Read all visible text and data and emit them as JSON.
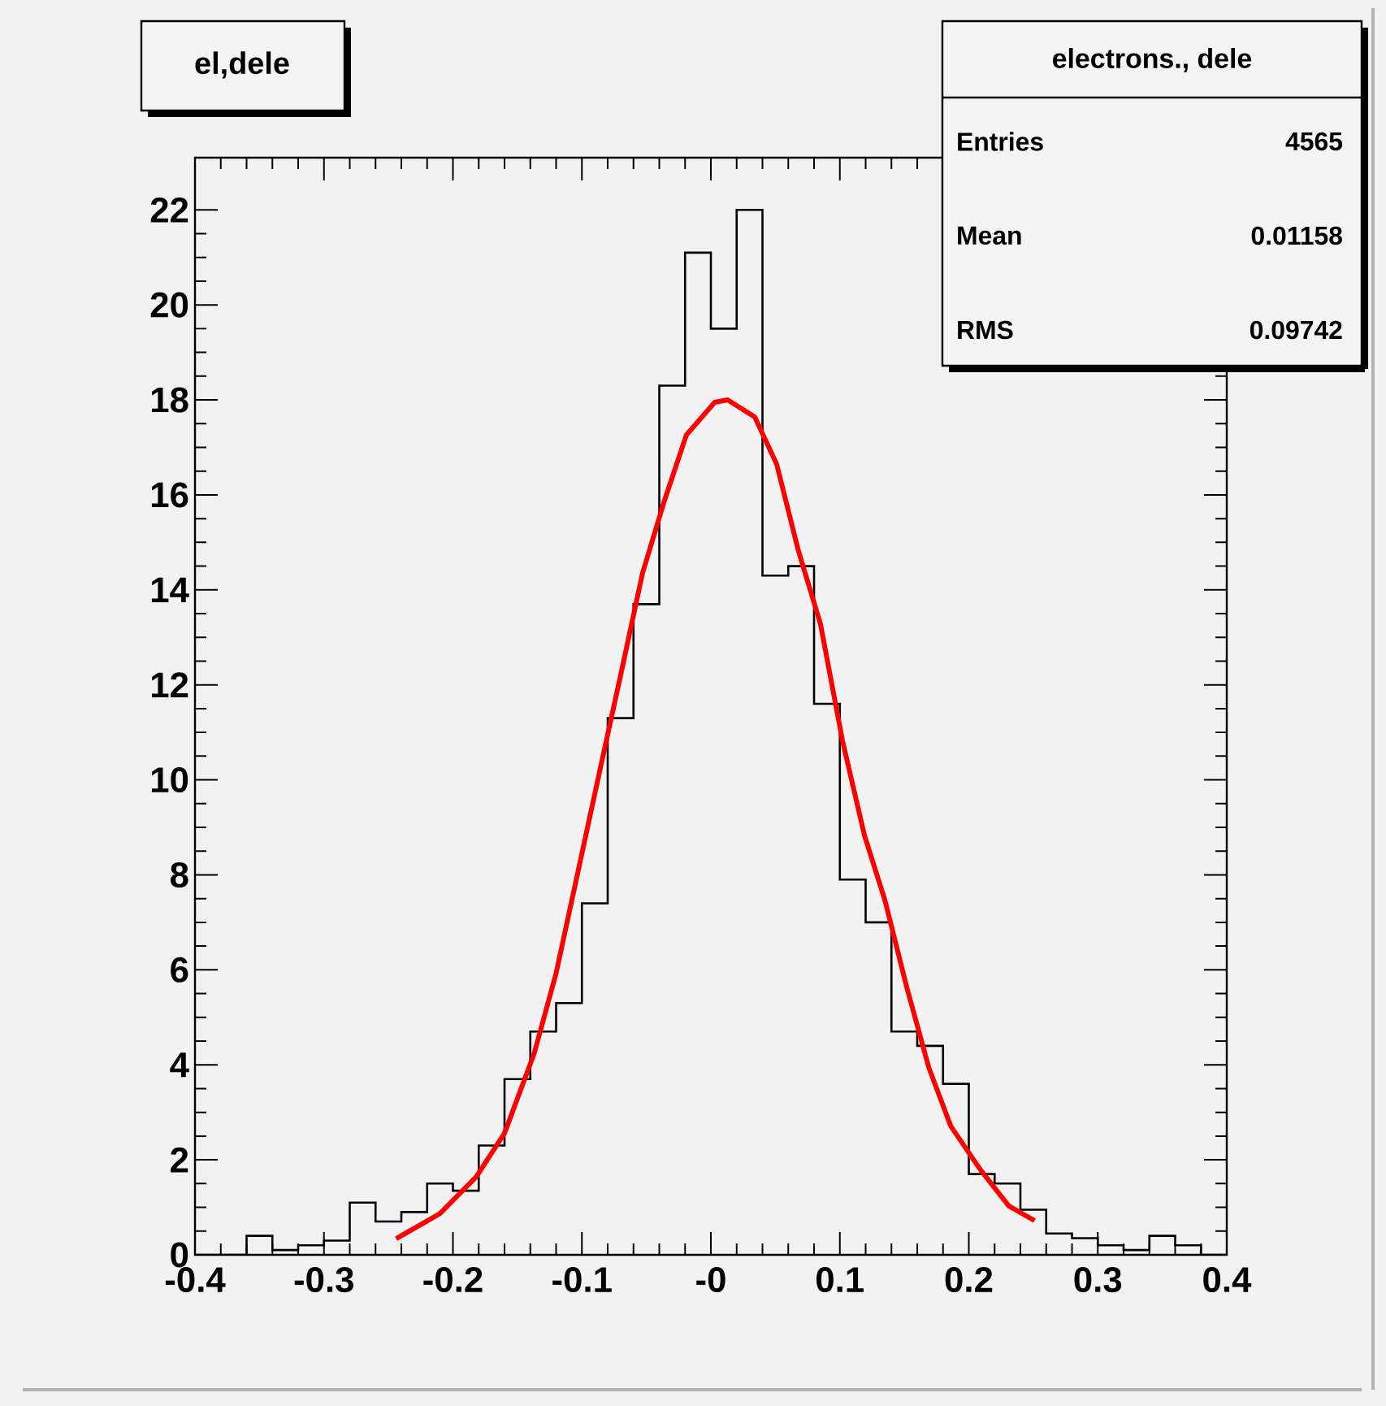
{
  "chart_data": {
    "type": "histogram",
    "title": "el,dele",
    "annotations": [
      "electrons., dele",
      "Entries",
      "4565",
      "Mean",
      "0.01158",
      "RMS",
      "0.09742"
    ],
    "xlim": [
      -0.4,
      0.4
    ],
    "ylim": [
      0,
      23.1
    ],
    "xticks": [
      -0.4,
      -0.3,
      -0.2,
      -0.1,
      {
        "value": 0,
        "label": "-0"
      },
      0.1,
      0.2,
      0.3,
      0.4
    ],
    "yticks": [
      0,
      2,
      4,
      6,
      8,
      10,
      12,
      14,
      16,
      18,
      20,
      22
    ],
    "marker": "none",
    "series": [
      {
        "color": "#000000",
        "bins": [
          -0.4,
          -0.38,
          -0.36,
          -0.34,
          -0.32,
          -0.3,
          -0.28,
          -0.26,
          -0.24,
          -0.22,
          -0.2,
          -0.18,
          -0.16,
          -0.14,
          -0.12,
          -0.1,
          -0.08,
          -0.06,
          -0.04,
          -0.02,
          0,
          0.02,
          0.04,
          0.06,
          0.08,
          0.1,
          0.12,
          0.14,
          0.16,
          0.18,
          0.2,
          0.22,
          0.24,
          0.26,
          0.28,
          0.3,
          0.32,
          0.34,
          0.36,
          0.38,
          0.4
        ],
        "values": [
          0,
          0,
          0.4,
          0.1,
          0.2,
          0.3,
          1.1,
          0.7,
          0.9,
          1.5,
          1.35,
          2.3,
          3.7,
          4.7,
          5.3,
          7.4,
          11.3,
          13.7,
          18.3,
          21.1,
          19.5,
          22.0,
          14.3,
          14.5,
          11.6,
          7.9,
          7.0,
          4.7,
          4.4,
          3.6,
          1.7,
          1.5,
          0.95,
          0.45,
          0.35,
          0.2,
          0.1,
          0.4,
          0.2,
          0
        ]
      },
      {
        "type": "line",
        "color": "#ff0000",
        "x": [
          -0.244,
          -0.21,
          -0.182,
          -0.16,
          -0.137,
          -0.12,
          -0.103,
          -0.086,
          -0.07,
          -0.053,
          -0.036,
          -0.019,
          0.003,
          0.013,
          0.034,
          0.051,
          0.068,
          0.085,
          0.102,
          0.119,
          0.135,
          0.152,
          0.169,
          0.186,
          0.209,
          0.231,
          0.251
        ],
        "values": [
          0.34,
          0.87,
          1.64,
          2.56,
          4.24,
          5.93,
          8.07,
          10.21,
          12.2,
          14.35,
          15.88,
          17.26,
          17.95,
          18.0,
          17.64,
          16.65,
          14.81,
          13.28,
          10.83,
          8.84,
          7.46,
          5.62,
          3.94,
          2.71,
          1.79,
          1.03,
          0.72
        ]
      }
    ]
  }
}
